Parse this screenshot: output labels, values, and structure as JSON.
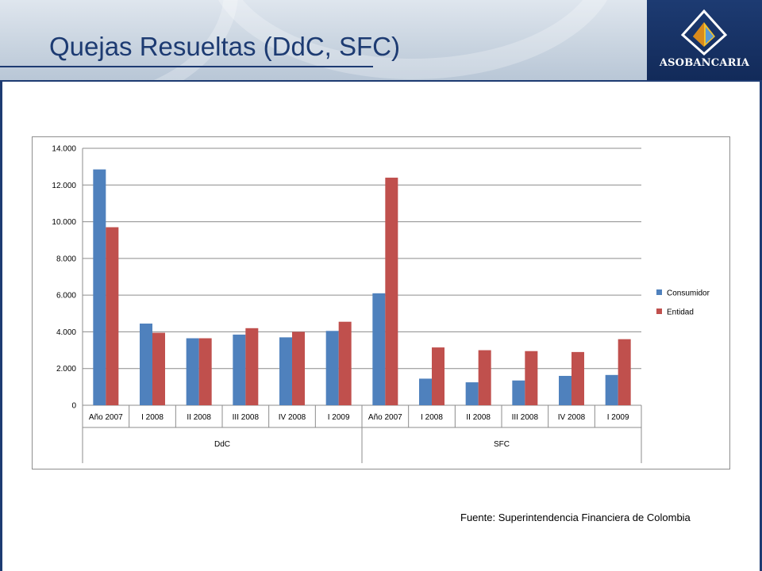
{
  "header": {
    "title": "Quejas Resueltas (DdC, SFC)",
    "logo_text": "ASOBANCARIA",
    "logo_color": "#1d3b72"
  },
  "footer": {
    "source": "Fuente: Superintendencia Financiera de Colombia"
  },
  "chart_data": {
    "type": "bar",
    "title": "",
    "xlabel": "",
    "ylabel": "",
    "ylim": [
      0,
      14000
    ],
    "yticks": [
      0,
      2000,
      4000,
      6000,
      8000,
      10000,
      12000,
      14000
    ],
    "ytick_labels": [
      "0",
      "2.000",
      "4.000",
      "6.000",
      "8.000",
      "10.000",
      "12.000",
      "14.000"
    ],
    "grid": true,
    "legend_position": "right",
    "groups": [
      {
        "label": "DdC",
        "categories": [
          "Año 2007",
          "I 2008",
          "II 2008",
          "III 2008",
          "IV 2008",
          "I 2009"
        ]
      },
      {
        "label": "SFC",
        "categories": [
          "Año 2007",
          "I 2008",
          "II 2008",
          "III 2008",
          "IV 2008",
          "I 2009"
        ]
      }
    ],
    "series": [
      {
        "name": "Consumidor",
        "color": "#4f81bd",
        "values": [
          12850,
          4450,
          3650,
          3850,
          3700,
          4050,
          6100,
          1450,
          1250,
          1350,
          1600,
          1650
        ]
      },
      {
        "name": "Entidad",
        "color": "#c0504d",
        "values": [
          9700,
          3950,
          3650,
          4200,
          4000,
          4550,
          12400,
          3150,
          3000,
          2950,
          2900,
          3600
        ]
      }
    ]
  }
}
